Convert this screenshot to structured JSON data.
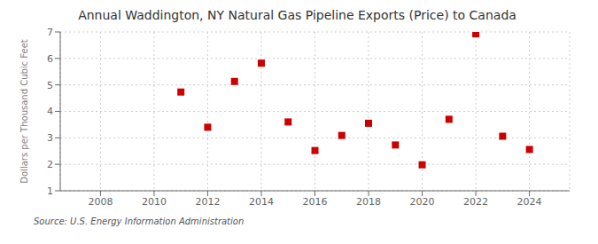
{
  "chart_data": {
    "type": "scatter",
    "title": "Annual Waddington, NY Natural Gas Pipeline Exports (Price) to Canada",
    "ylabel": "Dollars per Thousand Cubic Feet",
    "annotations": [
      "Source: U.S. Energy Information Administration"
    ],
    "x": [
      2011,
      2012,
      2013,
      2014,
      2015,
      2016,
      2017,
      2018,
      2019,
      2020,
      2021,
      2022,
      2023,
      2024
    ],
    "values": [
      4.73,
      3.4,
      5.13,
      5.82,
      3.6,
      2.52,
      3.09,
      3.55,
      2.73,
      1.98,
      3.7,
      6.93,
      3.06,
      2.56
    ],
    "color": "#cc0000",
    "marker": "square",
    "xlim": [
      2006.5,
      2025.5
    ],
    "xticks": [
      2008,
      2010,
      2012,
      2014,
      2016,
      2018,
      2020,
      2022,
      2024
    ],
    "ylim": [
      1,
      7
    ],
    "yticks": [
      1,
      2,
      3,
      4,
      5,
      6,
      7
    ],
    "grid": true
  }
}
